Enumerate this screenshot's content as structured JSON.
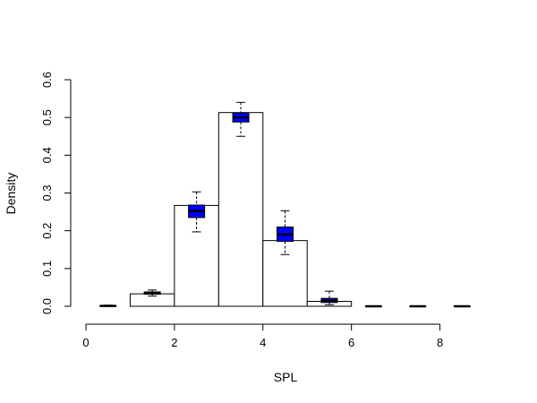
{
  "chart_data": {
    "type": "bar",
    "title": "",
    "xlabel": "SPL",
    "ylabel": "Density",
    "xlim": [
      0,
      9
    ],
    "ylim": [
      0,
      0.6
    ],
    "x_ticks": [
      0,
      2,
      4,
      6,
      8
    ],
    "y_ticks": [
      0.0,
      0.1,
      0.2,
      0.3,
      0.4,
      0.5,
      0.6
    ],
    "x_tick_labels": [
      "0",
      "2",
      "4",
      "6",
      "8"
    ],
    "y_tick_labels": [
      "0.0",
      "0.1",
      "0.2",
      "0.3",
      "0.4",
      "0.5",
      "0.6"
    ],
    "grid": false,
    "colors": {
      "bar_fill": "#ffffff",
      "bar_stroke": "#000000",
      "box_fill": "#0000ff",
      "axis": "#000000"
    },
    "histogram": {
      "bins": [
        {
          "x0": 0,
          "x1": 1,
          "density": 0.0
        },
        {
          "x0": 1,
          "x1": 2,
          "density": 0.033
        },
        {
          "x0": 2,
          "x1": 3,
          "density": 0.267
        },
        {
          "x0": 3,
          "x1": 4,
          "density": 0.513
        },
        {
          "x0": 4,
          "x1": 5,
          "density": 0.174
        },
        {
          "x0": 5,
          "x1": 6,
          "density": 0.013
        },
        {
          "x0": 6,
          "x1": 7,
          "density": 0.0
        },
        {
          "x0": 7,
          "x1": 8,
          "density": 0.0
        },
        {
          "x0": 8,
          "x1": 9,
          "density": 0.0
        }
      ]
    },
    "boxplots": [
      {
        "x": 0.5,
        "whisker_low": 0.0,
        "q1": 0.0,
        "median": 0.001,
        "q3": 0.002,
        "whisker_high": 0.003
      },
      {
        "x": 1.5,
        "whisker_low": 0.027,
        "q1": 0.032,
        "median": 0.035,
        "q3": 0.038,
        "whisker_high": 0.043
      },
      {
        "x": 2.5,
        "whisker_low": 0.197,
        "q1": 0.235,
        "median": 0.252,
        "q3": 0.268,
        "whisker_high": 0.303
      },
      {
        "x": 3.5,
        "whisker_low": 0.45,
        "q1": 0.488,
        "median": 0.5,
        "q3": 0.512,
        "whisker_high": 0.54
      },
      {
        "x": 4.5,
        "whisker_low": 0.137,
        "q1": 0.172,
        "median": 0.19,
        "q3": 0.21,
        "whisker_high": 0.253
      },
      {
        "x": 5.5,
        "whisker_low": 0.004,
        "q1": 0.01,
        "median": 0.015,
        "q3": 0.021,
        "whisker_high": 0.04
      },
      {
        "x": 6.5,
        "whisker_low": 0.0,
        "q1": 0.0,
        "median": 0.0,
        "q3": 0.0,
        "whisker_high": 0.001
      },
      {
        "x": 7.5,
        "whisker_low": 0.0,
        "q1": 0.0,
        "median": 0.0,
        "q3": 0.0,
        "whisker_high": 0.0
      },
      {
        "x": 8.5,
        "whisker_low": 0.0,
        "q1": 0.0,
        "median": 0.0,
        "q3": 0.0,
        "whisker_high": 0.0
      }
    ]
  }
}
